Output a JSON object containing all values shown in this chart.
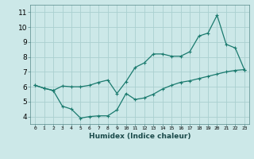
{
  "xlabel": "Humidex (Indice chaleur)",
  "ylabel": "",
  "bg_color": "#cce8e8",
  "grid_color": "#aad0d0",
  "line_color": "#1a7a6e",
  "xlim": [
    -0.5,
    23.5
  ],
  "ylim": [
    3.5,
    11.5
  ],
  "xticks": [
    0,
    1,
    2,
    3,
    4,
    5,
    6,
    7,
    8,
    9,
    10,
    11,
    12,
    13,
    14,
    15,
    16,
    17,
    18,
    19,
    20,
    21,
    22,
    23
  ],
  "yticks": [
    4,
    5,
    6,
    7,
    8,
    9,
    10,
    11
  ],
  "line1_x": [
    0,
    1,
    2,
    3,
    4,
    5,
    6,
    7,
    8,
    9,
    10,
    11,
    12,
    13,
    14,
    15,
    16,
    17,
    18,
    19,
    20,
    21,
    22,
    23
  ],
  "line1_y": [
    6.1,
    5.9,
    5.75,
    6.05,
    6.0,
    6.0,
    6.1,
    6.3,
    6.45,
    5.55,
    6.35,
    7.3,
    7.6,
    8.2,
    8.2,
    8.05,
    8.05,
    8.35,
    9.4,
    9.6,
    10.8,
    8.85,
    8.6,
    7.15
  ],
  "line2_x": [
    0,
    1,
    2,
    3,
    4,
    5,
    6,
    7,
    8,
    9,
    10,
    11,
    12,
    13,
    14,
    15,
    16,
    17,
    18,
    19,
    20,
    21,
    22,
    23
  ],
  "line2_y": [
    6.1,
    5.9,
    5.75,
    4.7,
    4.5,
    3.9,
    4.0,
    4.05,
    4.05,
    4.45,
    5.55,
    5.15,
    5.25,
    5.5,
    5.85,
    6.1,
    6.3,
    6.4,
    6.55,
    6.7,
    6.85,
    7.0,
    7.1,
    7.15
  ]
}
